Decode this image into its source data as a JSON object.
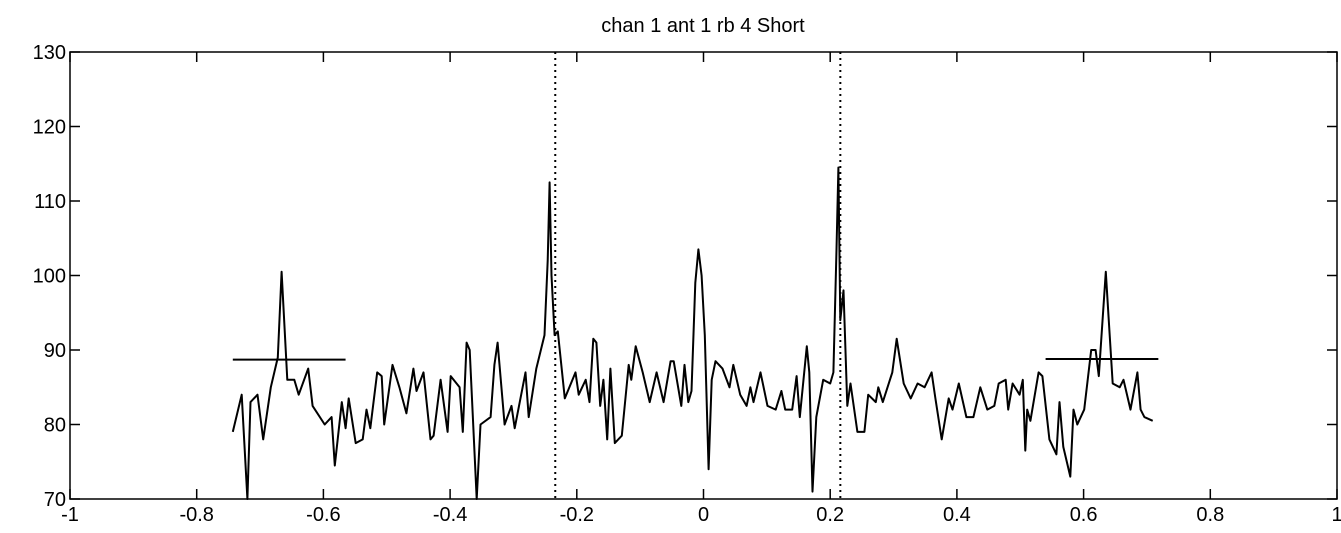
{
  "chart_data": {
    "type": "line",
    "title": "chan 1  ant 1  rb 4 Short",
    "x": [
      -0.743,
      -0.729,
      -0.72,
      -0.715,
      -0.704,
      -0.695,
      -0.683,
      -0.672,
      -0.666,
      -0.657,
      -0.646,
      -0.639,
      -0.624,
      -0.617,
      -0.598,
      -0.587,
      -0.582,
      -0.571,
      -0.565,
      -0.56,
      -0.549,
      -0.538,
      -0.532,
      -0.526,
      -0.515,
      -0.508,
      -0.504,
      -0.491,
      -0.48,
      -0.469,
      -0.458,
      -0.453,
      -0.442,
      -0.431,
      -0.426,
      -0.415,
      -0.404,
      -0.399,
      -0.385,
      -0.38,
      -0.374,
      -0.369,
      -0.358,
      -0.352,
      -0.336,
      -0.33,
      -0.325,
      -0.314,
      -0.303,
      -0.298,
      -0.281,
      -0.276,
      -0.264,
      -0.251,
      -0.246,
      -0.243,
      -0.24,
      -0.235,
      -0.23,
      -0.219,
      -0.202,
      -0.197,
      -0.186,
      -0.18,
      -0.174,
      -0.169,
      -0.163,
      -0.158,
      -0.152,
      -0.147,
      -0.14,
      -0.129,
      -0.118,
      -0.114,
      -0.107,
      -0.096,
      -0.085,
      -0.074,
      -0.063,
      -0.052,
      -0.047,
      -0.035,
      -0.03,
      -0.024,
      -0.019,
      -0.013,
      -0.008,
      -0.003,
      0.002,
      0.008,
      0.013,
      0.019,
      0.03,
      0.041,
      0.047,
      0.058,
      0.068,
      0.074,
      0.079,
      0.09,
      0.101,
      0.114,
      0.123,
      0.129,
      0.14,
      0.147,
      0.152,
      0.163,
      0.167,
      0.172,
      0.178,
      0.189,
      0.2,
      0.205,
      0.21,
      0.213,
      0.216,
      0.221,
      0.227,
      0.232,
      0.243,
      0.254,
      0.26,
      0.272,
      0.276,
      0.283,
      0.298,
      0.305,
      0.316,
      0.327,
      0.338,
      0.349,
      0.36,
      0.366,
      0.376,
      0.387,
      0.393,
      0.403,
      0.415,
      0.426,
      0.437,
      0.448,
      0.459,
      0.466,
      0.477,
      0.481,
      0.488,
      0.499,
      0.504,
      0.508,
      0.511,
      0.516,
      0.529,
      0.535,
      0.546,
      0.557,
      0.562,
      0.568,
      0.579,
      0.584,
      0.59,
      0.601,
      0.612,
      0.619,
      0.624,
      0.635,
      0.639,
      0.646,
      0.657,
      0.663,
      0.674,
      0.685,
      0.69,
      0.696,
      0.709
    ],
    "series": [
      {
        "color": "#000000",
        "values": [
          79,
          84,
          70,
          83,
          84,
          78,
          85,
          89,
          100.5,
          86,
          86,
          84,
          87.5,
          82.5,
          80,
          81,
          74.5,
          83,
          79.5,
          83.5,
          77.5,
          78,
          82,
          79.5,
          87,
          86.5,
          80,
          88,
          85,
          81.5,
          87.5,
          84.5,
          87,
          78,
          78.5,
          86,
          79,
          86.5,
          85,
          79,
          91,
          90,
          70,
          80,
          81,
          88,
          91,
          80,
          82.5,
          79.5,
          87,
          81,
          87.5,
          92,
          102,
          112.5,
          100,
          92,
          92.5,
          83.5,
          87,
          84,
          86,
          83,
          91.5,
          91,
          82.5,
          86,
          78,
          87.5,
          77.5,
          78.5,
          88,
          86,
          90.5,
          87,
          83,
          87,
          83,
          88.5,
          88.5,
          82.5,
          88,
          83,
          84.5,
          99,
          103.5,
          100,
          92,
          74,
          86,
          88.5,
          87.5,
          85,
          88,
          84,
          82.5,
          85,
          83,
          87,
          82.5,
          82,
          84.5,
          82,
          82,
          86.5,
          81,
          90.5,
          87,
          71,
          81,
          86,
          85.5,
          87,
          103.5,
          114.5,
          94,
          98,
          82.5,
          85.5,
          79,
          79,
          84,
          83,
          85,
          83,
          87,
          91.5,
          85.5,
          83.5,
          85.5,
          85,
          87,
          83.5,
          78,
          83.5,
          82,
          85.5,
          81,
          81,
          85,
          82,
          82.5,
          85.5,
          86,
          82,
          85.5,
          84,
          86,
          76.5,
          82,
          80.5,
          87,
          86.5,
          78,
          76,
          83,
          77,
          73,
          82,
          80,
          82,
          90,
          90,
          86.5,
          100.5,
          95,
          85.5,
          85,
          86,
          82,
          87,
          82,
          81,
          80.5
        ]
      }
    ],
    "hlines": [
      {
        "x": [
          -0.743,
          -0.565
        ],
        "y": 88.7
      },
      {
        "x": [
          0.54,
          0.718
        ],
        "y": 88.8
      }
    ],
    "vlines": [
      -0.234,
      0.216
    ],
    "xlim": [
      -1,
      1
    ],
    "xticks": [
      -1,
      -0.8,
      -0.6,
      -0.4,
      -0.2,
      0,
      0.2,
      0.4,
      0.6,
      0.8,
      1
    ],
    "ylim": [
      70,
      130
    ],
    "yticks": [
      70,
      80,
      90,
      100,
      110,
      120,
      130
    ]
  }
}
